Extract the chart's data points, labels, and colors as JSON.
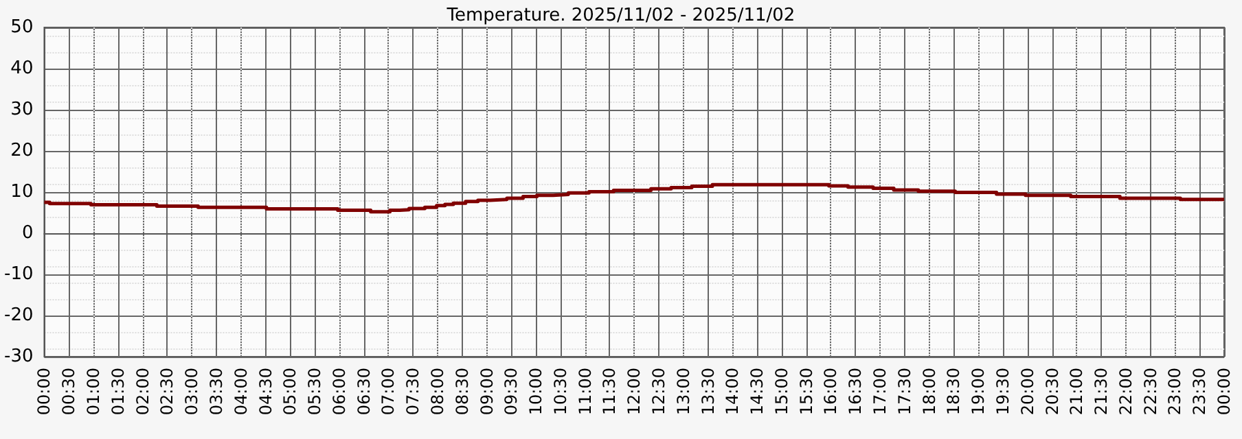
{
  "chart_data": {
    "type": "step",
    "title": "Temperature. 2025/11/02 - 2025/11/02",
    "x": [
      0,
      0.11,
      0.95,
      2.29,
      3.13,
      4.52,
      5.97,
      6.64,
      7.03,
      7.23,
      7.42,
      7.74,
      7.98,
      8.15,
      8.32,
      8.57,
      8.82,
      9.07,
      9.41,
      9.74,
      10.02,
      10.35,
      10.66,
      11.08,
      11.58,
      12.34,
      12.75,
      13.17,
      13.59,
      15.96,
      16.35,
      16.86,
      17.28,
      17.78,
      18.53,
      19.37,
      19.96,
      20.88,
      21.88,
      23.11,
      24
    ],
    "series": [
      {
        "color": "#800000",
        "values": [
          7.5,
          7.2,
          6.9,
          6.6,
          6.3,
          5.9,
          5.6,
          5.2,
          5.6,
          5.7,
          6.0,
          6.3,
          6.7,
          7.0,
          7.3,
          7.7,
          8.0,
          8.2,
          8.5,
          8.9,
          9.2,
          9.4,
          9.8,
          10.1,
          10.4,
          10.8,
          11.1,
          11.4,
          11.8,
          11.5,
          11.2,
          10.9,
          10.5,
          10.2,
          9.9,
          9.5,
          9.2,
          8.9,
          8.5,
          8.2,
          8.2
        ]
      }
    ],
    "xlim": [
      0,
      24
    ],
    "xticks": [
      {
        "value": 0,
        "label": "00:00"
      },
      {
        "value": 0.5,
        "label": "00:30"
      },
      {
        "value": 1,
        "label": "01:00"
      },
      {
        "value": 1.5,
        "label": "01:30"
      },
      {
        "value": 2,
        "label": "02:00"
      },
      {
        "value": 2.5,
        "label": "02:30"
      },
      {
        "value": 3,
        "label": "03:00"
      },
      {
        "value": 3.5,
        "label": "03:30"
      },
      {
        "value": 4,
        "label": "04:00"
      },
      {
        "value": 4.5,
        "label": "04:30"
      },
      {
        "value": 5,
        "label": "05:00"
      },
      {
        "value": 5.5,
        "label": "05:30"
      },
      {
        "value": 6,
        "label": "06:00"
      },
      {
        "value": 6.5,
        "label": "06:30"
      },
      {
        "value": 7,
        "label": "07:00"
      },
      {
        "value": 7.5,
        "label": "07:30"
      },
      {
        "value": 8,
        "label": "08:00"
      },
      {
        "value": 8.5,
        "label": "08:30"
      },
      {
        "value": 9,
        "label": "09:00"
      },
      {
        "value": 9.5,
        "label": "09:30"
      },
      {
        "value": 10,
        "label": "10:00"
      },
      {
        "value": 10.5,
        "label": "10:30"
      },
      {
        "value": 11,
        "label": "11:00"
      },
      {
        "value": 11.5,
        "label": "11:30"
      },
      {
        "value": 12,
        "label": "12:00"
      },
      {
        "value": 12.5,
        "label": "12:30"
      },
      {
        "value": 13,
        "label": "13:00"
      },
      {
        "value": 13.5,
        "label": "13:30"
      },
      {
        "value": 14,
        "label": "14:00"
      },
      {
        "value": 14.5,
        "label": "14:30"
      },
      {
        "value": 15,
        "label": "15:00"
      },
      {
        "value": 15.5,
        "label": "15:30"
      },
      {
        "value": 16,
        "label": "16:00"
      },
      {
        "value": 16.5,
        "label": "16:30"
      },
      {
        "value": 17,
        "label": "17:00"
      },
      {
        "value": 17.5,
        "label": "17:30"
      },
      {
        "value": 18,
        "label": "18:00"
      },
      {
        "value": 18.5,
        "label": "18:30"
      },
      {
        "value": 19,
        "label": "19:00"
      },
      {
        "value": 19.5,
        "label": "19:30"
      },
      {
        "value": 20,
        "label": "20:00"
      },
      {
        "value": 20.5,
        "label": "20:30"
      },
      {
        "value": 21,
        "label": "21:00"
      },
      {
        "value": 21.5,
        "label": "21:30"
      },
      {
        "value": 22,
        "label": "22:00"
      },
      {
        "value": 22.5,
        "label": "22:30"
      },
      {
        "value": 23,
        "label": "23:00"
      },
      {
        "value": 23.5,
        "label": "23:30"
      },
      {
        "value": 24,
        "label": "00:00"
      }
    ],
    "ylim": [
      -30,
      50
    ],
    "yticks": [
      -30,
      -20,
      -10,
      0,
      10,
      20,
      30,
      40,
      50
    ],
    "grid": true,
    "marker": "none",
    "line_style": "solid"
  }
}
